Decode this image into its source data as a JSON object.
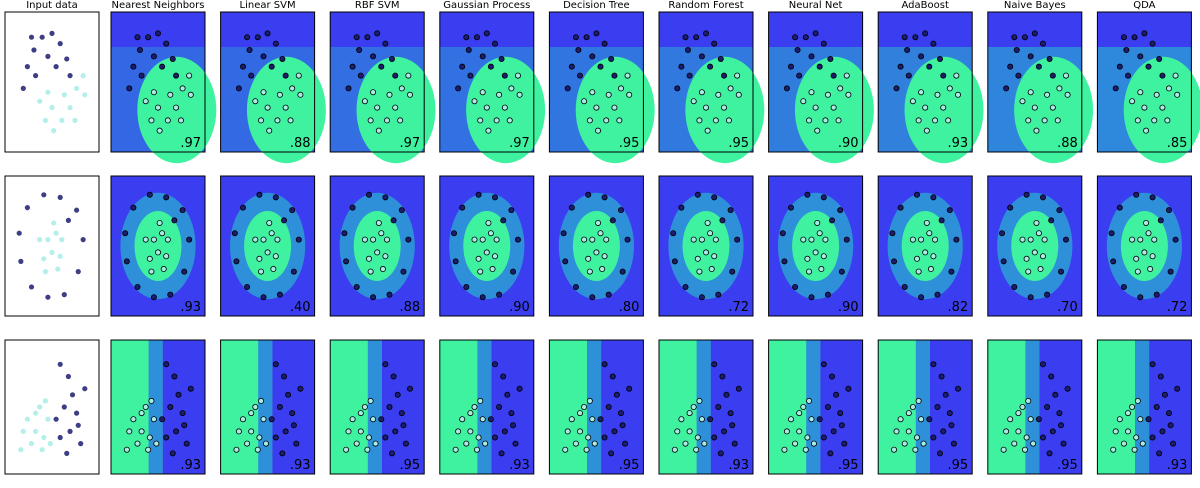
{
  "chart_data": {
    "type": "classifier-grid",
    "columns": [
      "Input data",
      "Nearest Neighbors",
      "Linear SVM",
      "RBF SVM",
      "Gaussian Process",
      "Decision Tree",
      "Random Forest",
      "Neural Net",
      "AdaBoost",
      "Naive Bayes",
      "QDA"
    ],
    "colors": [
      "#1c1c70",
      "#a8ece6"
    ],
    "rows": [
      {
        "shape": "moons",
        "values": [
          0.97,
          0.88,
          0.97,
          0.97,
          0.95,
          0.95,
          0.9,
          0.93,
          0.88,
          0.85
        ],
        "value_labels": [
          ".97",
          ".88",
          ".97",
          ".97",
          ".95",
          ".95",
          ".90",
          ".93",
          ".88",
          ".85"
        ],
        "points": [
          [
            0.15,
            0.45,
            0
          ],
          [
            0.2,
            0.62,
            0
          ],
          [
            0.28,
            0.75,
            0
          ],
          [
            0.38,
            0.85,
            0
          ],
          [
            0.5,
            0.88,
            0
          ],
          [
            0.6,
            0.8,
            0
          ],
          [
            0.68,
            0.68,
            0
          ],
          [
            0.72,
            0.55,
            0
          ],
          [
            0.3,
            0.55,
            0
          ],
          [
            0.45,
            0.7,
            0
          ],
          [
            0.55,
            0.62,
            0
          ],
          [
            0.25,
            0.85,
            0
          ],
          [
            0.35,
            0.35,
            1
          ],
          [
            0.42,
            0.2,
            1
          ],
          [
            0.52,
            0.12,
            1
          ],
          [
            0.62,
            0.2,
            1
          ],
          [
            0.72,
            0.3,
            1
          ],
          [
            0.8,
            0.45,
            1
          ],
          [
            0.88,
            0.55,
            1
          ],
          [
            0.5,
            0.3,
            1
          ],
          [
            0.65,
            0.4,
            1
          ],
          [
            0.78,
            0.2,
            1
          ],
          [
            0.45,
            0.42,
            1
          ],
          [
            0.9,
            0.4,
            1
          ]
        ]
      },
      {
        "shape": "circles",
        "values": [
          0.93,
          0.4,
          0.88,
          0.9,
          0.8,
          0.72,
          0.9,
          0.82,
          0.7,
          0.72
        ],
        "value_labels": [
          ".93",
          ".40",
          ".88",
          ".90",
          ".80",
          ".72",
          ".90",
          ".82",
          ".70",
          ".72"
        ],
        "points": [
          [
            0.2,
            0.8,
            0
          ],
          [
            0.4,
            0.9,
            0
          ],
          [
            0.6,
            0.88,
            0
          ],
          [
            0.8,
            0.78,
            0
          ],
          [
            0.88,
            0.55,
            0
          ],
          [
            0.82,
            0.3,
            0
          ],
          [
            0.65,
            0.12,
            0
          ],
          [
            0.45,
            0.1,
            0
          ],
          [
            0.25,
            0.18,
            0
          ],
          [
            0.12,
            0.38,
            0
          ],
          [
            0.1,
            0.6,
            0
          ],
          [
            0.7,
            0.7,
            0
          ],
          [
            0.45,
            0.55,
            1
          ],
          [
            0.55,
            0.6,
            1
          ],
          [
            0.5,
            0.45,
            1
          ],
          [
            0.4,
            0.4,
            1
          ],
          [
            0.6,
            0.42,
            1
          ],
          [
            0.35,
            0.55,
            1
          ],
          [
            0.52,
            0.68,
            1
          ],
          [
            0.62,
            0.55,
            1
          ],
          [
            0.42,
            0.3,
            1
          ],
          [
            0.57,
            0.32,
            1
          ]
        ]
      },
      {
        "shape": "linear",
        "values": [
          0.93,
          0.93,
          0.95,
          0.93,
          0.95,
          0.93,
          0.95,
          0.95,
          0.95,
          0.93
        ],
        "value_labels": [
          ".93",
          ".93",
          ".95",
          ".93",
          ".95",
          ".93",
          ".95",
          ".95",
          ".95",
          ".93"
        ],
        "points": [
          [
            0.6,
            0.85,
            0
          ],
          [
            0.7,
            0.75,
            0
          ],
          [
            0.75,
            0.6,
            0
          ],
          [
            0.8,
            0.45,
            0
          ],
          [
            0.65,
            0.5,
            0
          ],
          [
            0.72,
            0.3,
            0
          ],
          [
            0.85,
            0.2,
            0
          ],
          [
            0.6,
            0.25,
            0
          ],
          [
            0.9,
            0.65,
            0
          ],
          [
            0.68,
            0.12,
            0
          ],
          [
            0.55,
            0.4,
            0
          ],
          [
            0.82,
            0.35,
            0
          ],
          [
            0.2,
            0.4,
            1
          ],
          [
            0.3,
            0.3,
            1
          ],
          [
            0.35,
            0.5,
            1
          ],
          [
            0.25,
            0.2,
            1
          ],
          [
            0.4,
            0.25,
            1
          ],
          [
            0.15,
            0.3,
            1
          ],
          [
            0.45,
            0.4,
            1
          ],
          [
            0.38,
            0.15,
            1
          ],
          [
            0.3,
            0.45,
            1
          ],
          [
            0.48,
            0.2,
            1
          ],
          [
            0.12,
            0.15,
            1
          ],
          [
            0.42,
            0.55,
            1
          ]
        ]
      }
    ]
  }
}
